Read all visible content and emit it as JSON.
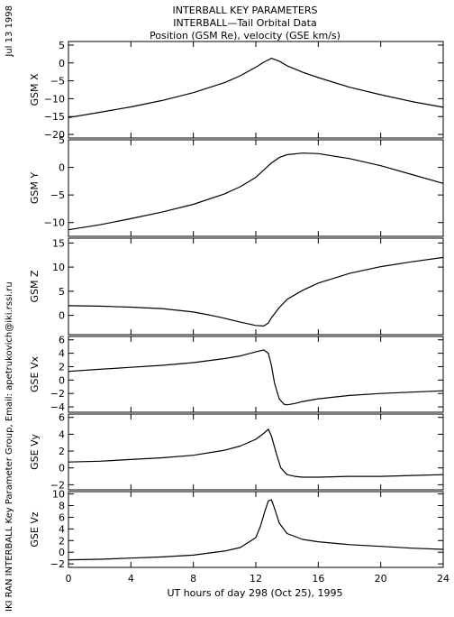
{
  "header": {
    "title_lines": [
      "INTERBALL KEY PARAMETERS",
      "INTERBALL—Tail Orbital Data",
      "Position (GSM Re), velocity (GSE km/s)"
    ],
    "date_stamp": "Jul 13 1998",
    "credit": "IKI RAN INTERBALL Key Parameter Group, Email: apetrukovich@iki.rssi.ru"
  },
  "chart_data": {
    "type": "line",
    "xlabel": "UT hours of day 298 (Oct 25), 1995",
    "xlim": [
      0,
      24
    ],
    "xticks": [
      0,
      4,
      8,
      12,
      16,
      20,
      24
    ],
    "panels": [
      {
        "ylabel": "GSM X",
        "ylim": [
          -21,
          6
        ],
        "yticks": [
          5,
          0,
          -5,
          -10,
          -15,
          -20
        ],
        "x": [
          0,
          2,
          4,
          6,
          8,
          10,
          11,
          12,
          12.5,
          13,
          13.5,
          14,
          15,
          16,
          18,
          20,
          22,
          24
        ],
        "y": [
          -15.3,
          -13.8,
          -12.3,
          -10.5,
          -8.3,
          -5.5,
          -3.6,
          -1.2,
          0.2,
          1.3,
          0.5,
          -0.8,
          -2.6,
          -4.1,
          -6.8,
          -8.9,
          -10.8,
          -12.4
        ]
      },
      {
        "ylabel": "GSM Y",
        "ylim": [
          -12.5,
          5
        ],
        "yticks": [
          5,
          0,
          -5,
          -10
        ],
        "x": [
          0,
          2,
          4,
          6,
          8,
          10,
          11,
          12,
          12.5,
          13,
          13.5,
          14,
          15,
          16,
          18,
          20,
          22,
          24
        ],
        "y": [
          -11.3,
          -10.4,
          -9.3,
          -8.1,
          -6.7,
          -4.8,
          -3.5,
          -1.8,
          -0.5,
          0.8,
          1.8,
          2.3,
          2.6,
          2.5,
          1.6,
          0.3,
          -1.3,
          -2.9
        ]
      },
      {
        "ylabel": "GSM Z",
        "ylim": [
          -4,
          16
        ],
        "yticks": [
          15,
          10,
          5,
          0
        ],
        "x": [
          0,
          2,
          4,
          6,
          8,
          9,
          10,
          11,
          12,
          12.5,
          12.8,
          13,
          13.5,
          14,
          15,
          16,
          18,
          20,
          22,
          24
        ],
        "y": [
          2.0,
          1.9,
          1.7,
          1.4,
          0.7,
          0.1,
          -0.6,
          -1.4,
          -2.1,
          -2.2,
          -1.6,
          -0.5,
          1.6,
          3.3,
          5.2,
          6.7,
          8.7,
          10.1,
          11.1,
          12.0
        ]
      },
      {
        "ylabel": "GSE Vx",
        "ylim": [
          -4.8,
          6.5
        ],
        "yticks": [
          6,
          4,
          2,
          0,
          -2,
          -4
        ],
        "x": [
          0,
          2,
          4,
          6,
          8,
          10,
          11,
          12,
          12.5,
          12.8,
          13,
          13.2,
          13.5,
          13.8,
          14,
          14.5,
          15,
          16,
          18,
          20,
          22,
          24
        ],
        "y": [
          1.3,
          1.6,
          1.9,
          2.2,
          2.6,
          3.2,
          3.6,
          4.2,
          4.5,
          4.0,
          2.2,
          -0.5,
          -2.8,
          -3.6,
          -3.7,
          -3.5,
          -3.2,
          -2.8,
          -2.3,
          -2.0,
          -1.8,
          -1.6
        ]
      },
      {
        "ylabel": "GSE Vy",
        "ylim": [
          -2.6,
          6.4
        ],
        "yticks": [
          6,
          4,
          2,
          0,
          -2
        ],
        "x": [
          0,
          2,
          4,
          6,
          8,
          10,
          11,
          12,
          12.5,
          12.8,
          13,
          13.3,
          13.6,
          14,
          14.5,
          15,
          16,
          18,
          20,
          22,
          24
        ],
        "y": [
          0.7,
          0.8,
          1.0,
          1.2,
          1.5,
          2.1,
          2.6,
          3.4,
          4.1,
          4.6,
          3.8,
          1.8,
          0.0,
          -0.8,
          -1.0,
          -1.1,
          -1.1,
          -1.0,
          -1.0,
          -0.9,
          -0.8
        ]
      },
      {
        "ylabel": "GSE Vz",
        "ylim": [
          -2.6,
          10.4
        ],
        "yticks": [
          10,
          8,
          6,
          4,
          2,
          0,
          -2
        ],
        "x": [
          0,
          2,
          4,
          6,
          8,
          10,
          11,
          12,
          12.3,
          12.6,
          12.8,
          13,
          13.2,
          13.5,
          14,
          15,
          16,
          18,
          20,
          22,
          24
        ],
        "y": [
          -1.3,
          -1.2,
          -1.0,
          -0.8,
          -0.5,
          0.2,
          0.8,
          2.5,
          4.5,
          7.2,
          8.8,
          9.0,
          7.5,
          5.0,
          3.2,
          2.2,
          1.8,
          1.3,
          1.0,
          0.7,
          0.5
        ]
      }
    ]
  }
}
